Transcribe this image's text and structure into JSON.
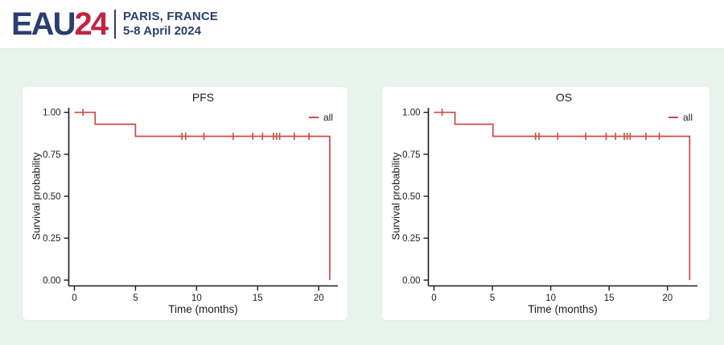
{
  "header": {
    "logo_eau": "EAU",
    "logo_24": "24",
    "location": "PARIS, FRANCE",
    "dates": "5-8 April 2024"
  },
  "colors": {
    "background": "#e9f3ee",
    "panel": "#ffffff",
    "navy": "#2b3e6f",
    "crimson": "#c22343",
    "curve": "#cd4a42",
    "ink": "#1c1c1c"
  },
  "chart_data": [
    {
      "type": "line",
      "subtype": "kaplan-meier-step",
      "title": "PFS",
      "xlabel": "Time (months)",
      "ylabel": "Survival probability",
      "legend": [
        {
          "label": "all"
        }
      ],
      "legend_position": "top-right",
      "grid": false,
      "xlim": [
        0,
        21.5
      ],
      "ylim": [
        0,
        1
      ],
      "x_ticks": [
        {
          "v": 0,
          "label": "0"
        },
        {
          "v": 5,
          "label": "5"
        },
        {
          "v": 10,
          "label": "10"
        },
        {
          "v": 15,
          "label": "15"
        },
        {
          "v": 20,
          "label": "20"
        }
      ],
      "y_ticks": [
        {
          "v": 0,
          "label": "0.00"
        },
        {
          "v": 0.25,
          "label": "0.25"
        },
        {
          "v": 0.5,
          "label": "0.50"
        },
        {
          "v": 0.75,
          "label": "0.75"
        },
        {
          "v": 1,
          "label": "1.00"
        }
      ],
      "series": [
        {
          "name": "all",
          "steps": [
            [
              0,
              1.0
            ],
            [
              1.7,
              1.0
            ],
            [
              1.7,
              0.929
            ],
            [
              5.0,
              0.929
            ],
            [
              5.0,
              0.857
            ],
            [
              20.9,
              0.857
            ],
            [
              20.9,
              0.0
            ]
          ],
          "censors": [
            [
              0.7,
              1.0
            ],
            [
              8.8,
              0.857
            ],
            [
              9.1,
              0.857
            ],
            [
              10.6,
              0.857
            ],
            [
              13.0,
              0.857
            ],
            [
              14.6,
              0.857
            ],
            [
              15.4,
              0.857
            ],
            [
              16.3,
              0.857
            ],
            [
              16.55,
              0.857
            ],
            [
              16.8,
              0.857
            ],
            [
              18.0,
              0.857
            ],
            [
              19.2,
              0.857
            ]
          ]
        }
      ]
    },
    {
      "type": "line",
      "subtype": "kaplan-meier-step",
      "title": "OS",
      "xlabel": "Time (months)",
      "ylabel": "Survival probability",
      "legend": [
        {
          "label": "all"
        }
      ],
      "legend_position": "top-right",
      "grid": false,
      "xlim": [
        0,
        22.5
      ],
      "ylim": [
        0,
        1
      ],
      "x_ticks": [
        {
          "v": 0,
          "label": "0"
        },
        {
          "v": 5,
          "label": "5"
        },
        {
          "v": 10,
          "label": "10"
        },
        {
          "v": 15,
          "label": "15"
        },
        {
          "v": 20,
          "label": "20"
        }
      ],
      "y_ticks": [
        {
          "v": 0,
          "label": "0.00"
        },
        {
          "v": 0.25,
          "label": "0.25"
        },
        {
          "v": 0.5,
          "label": "0.50"
        },
        {
          "v": 0.75,
          "label": "0.75"
        },
        {
          "v": 1,
          "label": "1.00"
        }
      ],
      "series": [
        {
          "name": "all",
          "steps": [
            [
              0,
              1.0
            ],
            [
              1.8,
              1.0
            ],
            [
              1.8,
              0.929
            ],
            [
              5.05,
              0.929
            ],
            [
              5.05,
              0.857
            ],
            [
              21.9,
              0.857
            ],
            [
              21.9,
              0.0
            ]
          ],
          "censors": [
            [
              0.7,
              1.0
            ],
            [
              8.7,
              0.857
            ],
            [
              9.0,
              0.857
            ],
            [
              10.6,
              0.857
            ],
            [
              13.0,
              0.857
            ],
            [
              14.75,
              0.857
            ],
            [
              15.55,
              0.857
            ],
            [
              16.3,
              0.857
            ],
            [
              16.55,
              0.857
            ],
            [
              16.8,
              0.857
            ],
            [
              18.15,
              0.857
            ],
            [
              19.3,
              0.857
            ]
          ]
        }
      ]
    }
  ]
}
